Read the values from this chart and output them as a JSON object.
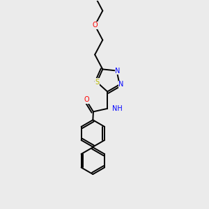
{
  "bg_color": "#ebebeb",
  "bond_color": "#000000",
  "bond_width": 1.4,
  "atom_colors": {
    "N": "#0000ff",
    "O": "#ff0000",
    "S": "#bbbb00",
    "C": "#000000",
    "H": "#008080"
  },
  "font_size": 7.0
}
